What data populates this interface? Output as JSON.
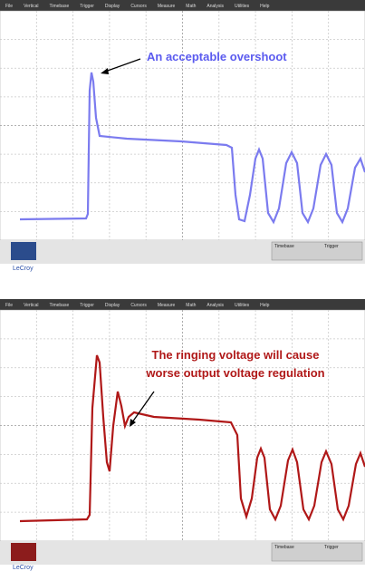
{
  "scopes": [
    {
      "menu": [
        "File",
        "Vertical",
        "Timebase",
        "Trigger",
        "Display",
        "Cursors",
        "Measure",
        "Math",
        "Analysis",
        "Utilities",
        "Help"
      ],
      "annotation": [
        "An acceptable overshoot"
      ],
      "status": [
        "Timebase",
        "Trigger"
      ],
      "brand": "LeCroy"
    },
    {
      "menu": [
        "File",
        "Vertical",
        "Timebase",
        "Trigger",
        "Display",
        "Cursors",
        "Measure",
        "Math",
        "Analysis",
        "Utilities",
        "Help"
      ],
      "annotation": [
        "The ringing voltage will cause",
        "worse output voltage regulation"
      ],
      "status": [
        "Timebase",
        "Trigger"
      ],
      "brand": "LeCroy"
    }
  ]
}
